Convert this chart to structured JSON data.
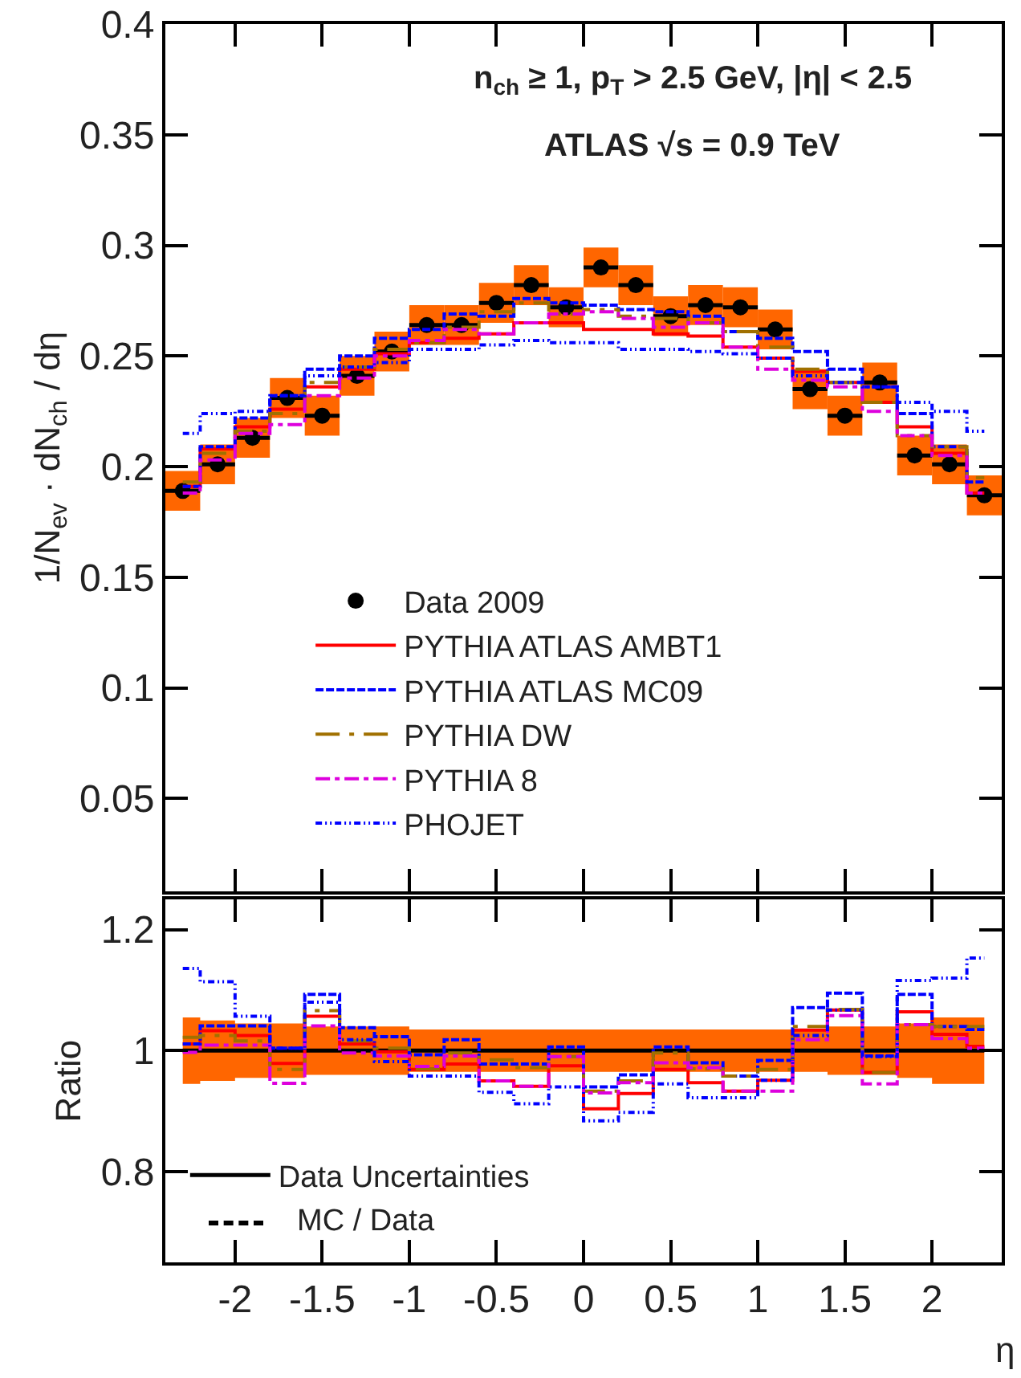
{
  "chart_data": [
    {
      "type": "step",
      "ylabel": "1/N$_{ev}$ · dN$_{ch}$ / dη",
      "annotations": [
        "n$_{ch}$ ≥ 1, p$_{T}$ > 2.5 GeV, |η| < 2.5",
        "ATLAS √s = 0.9 TeV"
      ],
      "x": [
        -2.3,
        -2.1,
        -1.9,
        -1.7,
        -1.5,
        -1.3,
        -1.1,
        -0.9,
        -0.7,
        -0.5,
        -0.3,
        -0.1,
        0.1,
        0.3,
        0.5,
        0.7,
        0.9,
        1.1,
        1.3,
        1.5,
        1.7,
        1.9,
        2.1,
        2.3
      ],
      "xlim": [
        -2.4,
        2.4
      ],
      "xticks": [
        -2,
        -1.5,
        -1,
        -0.5,
        0,
        0.5,
        1,
        1.5,
        2
      ],
      "ylim": [
        0.008,
        0.4
      ],
      "yticks": [
        0.05,
        0.1,
        0.15,
        0.2,
        0.25,
        0.3,
        0.35,
        0.4
      ],
      "tick_labels": "y",
      "legend": "bottom left",
      "series": [
        {
          "name": "Data 2009",
          "type": "scatter",
          "marker": "circle",
          "color": "#000000",
          "values": [
            0.189,
            0.201,
            0.213,
            0.231,
            0.223,
            0.241,
            0.252,
            0.264,
            0.264,
            0.274,
            0.282,
            0.272,
            0.29,
            0.282,
            0.268,
            0.273,
            0.272,
            0.262,
            0.235,
            0.223,
            0.238,
            0.205,
            0.201,
            0.187
          ],
          "errors": [
            0.009,
            0.009,
            0.009,
            0.009,
            0.009,
            0.009,
            0.009,
            0.009,
            0.009,
            0.009,
            0.009,
            0.009,
            0.009,
            0.009,
            0.009,
            0.009,
            0.009,
            0.009,
            0.009,
            0.009,
            0.009,
            0.009,
            0.009,
            0.009
          ],
          "xerrors": [
            0.1,
            0.1,
            0.1,
            0.1,
            0.1,
            0.1,
            0.1,
            0.1,
            0.1,
            0.1,
            0.1,
            0.1,
            0.1,
            0.1,
            0.1,
            0.1,
            0.1,
            0.1,
            0.1,
            0.1,
            0.1,
            0.1,
            0.1,
            0.1
          ]
        },
        {
          "name": "PYTHIA ATLAS AMBT1",
          "color": "#ff0000",
          "line_style": "solid",
          "values": [
            0.191,
            0.208,
            0.218,
            0.226,
            0.236,
            0.244,
            0.251,
            0.256,
            0.258,
            0.26,
            0.265,
            0.265,
            0.262,
            0.262,
            0.26,
            0.259,
            0.254,
            0.249,
            0.243,
            0.238,
            0.229,
            0.218,
            0.206,
            0.188
          ]
        },
        {
          "name": "PYTHIA ATLAS MC09",
          "color": "#0000ff",
          "line_style": "dashed",
          "values": [
            0.191,
            0.209,
            0.222,
            0.232,
            0.244,
            0.25,
            0.258,
            0.262,
            0.269,
            0.268,
            0.276,
            0.274,
            0.273,
            0.271,
            0.27,
            0.268,
            0.261,
            0.258,
            0.252,
            0.244,
            0.236,
            0.224,
            0.209,
            0.193
          ]
        },
        {
          "name": "PYTHIA DW",
          "color": "#a07000",
          "line_style": "longdashdot",
          "values": [
            0.193,
            0.206,
            0.216,
            0.224,
            0.238,
            0.245,
            0.253,
            0.256,
            0.263,
            0.27,
            0.274,
            0.269,
            0.271,
            0.268,
            0.267,
            0.265,
            0.261,
            0.254,
            0.244,
            0.238,
            0.229,
            0.214,
            0.209,
            0.195
          ]
        },
        {
          "name": "PYTHIA 8",
          "color": "#dd00dd",
          "line_style": "dashdot",
          "values": [
            0.188,
            0.203,
            0.215,
            0.219,
            0.232,
            0.24,
            0.25,
            0.257,
            0.262,
            0.26,
            0.265,
            0.269,
            0.27,
            0.267,
            0.263,
            0.265,
            0.254,
            0.244,
            0.239,
            0.236,
            0.225,
            0.214,
            0.205,
            0.188
          ]
        },
        {
          "name": "PHOJET",
          "color": "#0000ff",
          "line_style": "dashdotdot",
          "values": [
            0.215,
            0.224,
            0.225,
            0.232,
            0.241,
            0.245,
            0.247,
            0.253,
            0.253,
            0.255,
            0.257,
            0.256,
            0.256,
            0.253,
            0.253,
            0.252,
            0.251,
            0.249,
            0.241,
            0.238,
            0.236,
            0.229,
            0.225,
            0.216
          ]
        }
      ]
    },
    {
      "type": "step",
      "ylabel": "Ratio",
      "xlabel": "η",
      "annotations": [
        "MC / Data"
      ],
      "x": [
        -2.3,
        -2.1,
        -1.9,
        -1.7,
        -1.5,
        -1.3,
        -1.1,
        -0.9,
        -0.7,
        -0.5,
        -0.3,
        -0.1,
        0.1,
        0.3,
        0.5,
        0.7,
        0.9,
        1.1,
        1.3,
        1.5,
        1.7,
        1.9,
        2.1,
        2.3
      ],
      "xlim": [
        -2.4,
        2.4
      ],
      "xticks": [
        -2,
        -1.5,
        -1,
        -0.5,
        0,
        0.5,
        1,
        1.5,
        2
      ],
      "ylim": [
        0.65,
        1.25
      ],
      "yticks": [
        0.8,
        1,
        1.2
      ],
      "legend": "bottom left",
      "series": [
        {
          "name": "Data Uncertainties",
          "type": "line",
          "color": "#000000",
          "values": [
            1,
            1,
            1,
            1,
            1,
            1,
            1,
            1,
            1,
            1,
            1,
            1,
            1,
            1,
            1,
            1,
            1,
            1,
            1,
            1,
            1,
            1,
            1,
            1
          ],
          "upper": [
            1.055,
            1.05,
            1.045,
            1.045,
            1.04,
            1.04,
            1.04,
            1.035,
            1.035,
            1.035,
            1.035,
            1.035,
            1.035,
            1.035,
            1.035,
            1.035,
            1.035,
            1.035,
            1.035,
            1.04,
            1.04,
            1.045,
            1.055,
            1.055
          ],
          "lower": [
            0.945,
            0.95,
            0.955,
            0.955,
            0.96,
            0.96,
            0.96,
            0.965,
            0.965,
            0.965,
            0.965,
            0.965,
            0.965,
            0.965,
            0.965,
            0.965,
            0.965,
            0.965,
            0.965,
            0.96,
            0.96,
            0.955,
            0.945,
            0.945
          ]
        },
        {
          "color": "#ff0000",
          "line_style": "solid",
          "values": [
            1.011,
            1.033,
            1.025,
            0.979,
            1.057,
            1.011,
            0.998,
            0.969,
            0.978,
            0.95,
            0.941,
            0.975,
            0.904,
            0.929,
            0.969,
            0.947,
            0.933,
            0.951,
            1.034,
            1.067,
            0.964,
            1.064,
            1.027,
            1.007
          ]
        },
        {
          "color": "#0000ff",
          "line_style": "dashed",
          "values": [
            1.011,
            1.041,
            1.041,
            1.004,
            1.093,
            1.038,
            1.023,
            0.993,
            1.018,
            0.978,
            0.978,
            1.006,
            0.94,
            0.96,
            1.006,
            0.98,
            0.958,
            0.984,
            1.071,
            1.095,
            0.991,
            1.093,
            1.04,
            1.035
          ]
        },
        {
          "color": "#a07000",
          "line_style": "longdashdot",
          "values": [
            1.022,
            1.025,
            1.016,
            0.969,
            1.066,
            1.016,
            1.004,
            0.97,
            0.996,
            0.985,
            0.972,
            0.99,
            0.933,
            0.95,
            0.996,
            0.97,
            0.958,
            0.969,
            1.04,
            1.068,
            0.964,
            1.043,
            1.04,
            1.04
          ]
        },
        {
          "color": "#dd00dd",
          "line_style": "dashdot",
          "values": [
            0.997,
            1.009,
            1.009,
            0.946,
            1.041,
            0.996,
            0.991,
            0.974,
            0.991,
            0.95,
            0.941,
            0.99,
            0.93,
            0.947,
            0.98,
            0.972,
            0.933,
            0.933,
            1.018,
            1.058,
            0.945,
            1.043,
            1.02,
            1.004
          ]
        },
        {
          "color": "#0000ff",
          "line_style": "dashdotdot",
          "values": [
            1.136,
            1.114,
            1.057,
            1.004,
            1.08,
            1.018,
            0.982,
            0.958,
            0.958,
            0.931,
            0.912,
            0.94,
            0.884,
            0.898,
            0.945,
            0.922,
            0.922,
            0.951,
            1.025,
            1.067,
            0.99,
            1.116,
            1.12,
            1.153
          ]
        }
      ]
    }
  ]
}
